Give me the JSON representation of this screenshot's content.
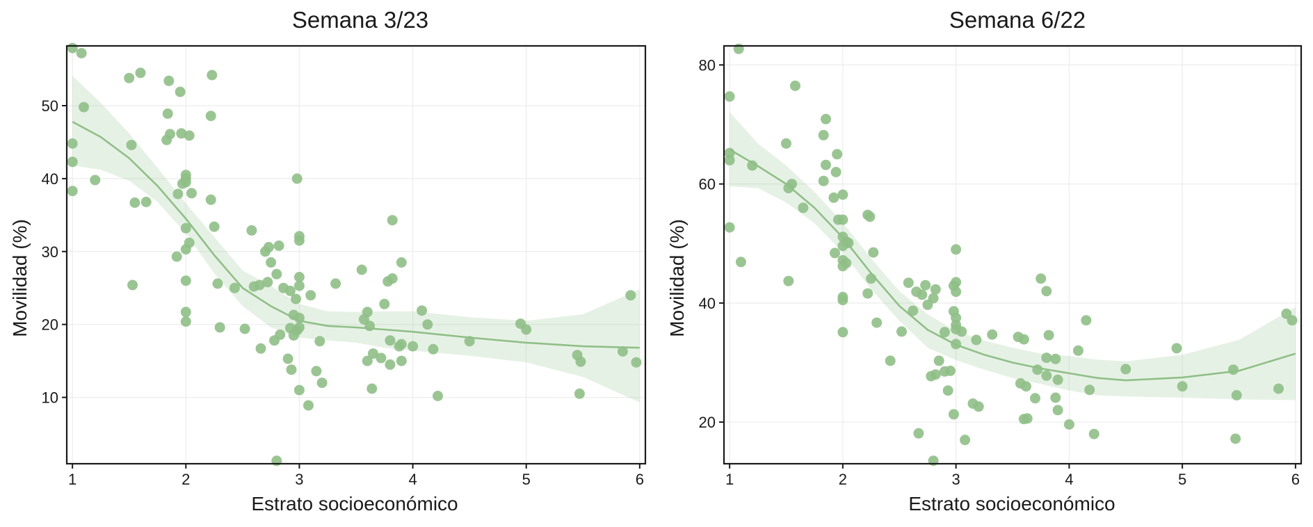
{
  "colors": {
    "points": "#8fbf87",
    "line": "#8fbf87",
    "ribbon": "#8fbf87",
    "axis": "#1a1a1a",
    "grid": "#ececec"
  },
  "chart_data": [
    {
      "type": "scatter",
      "title": "Semana 3/23",
      "xlabel": "Estrato socioeconómico",
      "ylabel": "Movilidad (%)",
      "xlim": [
        0.95,
        6.05
      ],
      "ylim": [
        0.9,
        58.2
      ],
      "xticks": [
        1,
        2,
        3,
        4,
        5,
        6
      ],
      "yticks": [
        10,
        20,
        30,
        40,
        50
      ],
      "xtick_labels": [
        "1",
        "2",
        "3",
        "4",
        "5",
        "6"
      ],
      "ytick_labels": [
        "10",
        "20",
        "30",
        "40",
        "50"
      ],
      "points": [
        [
          1.0,
          57.9
        ],
        [
          1.08,
          57.2
        ],
        [
          1.1,
          49.8
        ],
        [
          1.0,
          44.8
        ],
        [
          1.0,
          42.3
        ],
        [
          1.0,
          38.3
        ],
        [
          1.2,
          39.8
        ],
        [
          1.5,
          53.8
        ],
        [
          1.6,
          54.5
        ],
        [
          1.52,
          44.6
        ],
        [
          1.55,
          36.7
        ],
        [
          1.65,
          36.8
        ],
        [
          1.53,
          25.4
        ],
        [
          1.85,
          53.4
        ],
        [
          1.95,
          51.9
        ],
        [
          1.84,
          48.9
        ],
        [
          1.86,
          46.1
        ],
        [
          1.96,
          46.2
        ],
        [
          2.03,
          45.9
        ],
        [
          1.83,
          45.3
        ],
        [
          1.97,
          39.3
        ],
        [
          2.0,
          39.5
        ],
        [
          2.0,
          40.5
        ],
        [
          2.0,
          40.0
        ],
        [
          1.93,
          37.9
        ],
        [
          2.05,
          38.0
        ],
        [
          2.0,
          33.2
        ],
        [
          2.03,
          31.2
        ],
        [
          2.0,
          30.3
        ],
        [
          1.92,
          29.3
        ],
        [
          2.0,
          26.0
        ],
        [
          2.0,
          21.7
        ],
        [
          2.0,
          20.4
        ],
        [
          2.23,
          54.2
        ],
        [
          2.22,
          48.6
        ],
        [
          2.22,
          37.1
        ],
        [
          2.25,
          33.4
        ],
        [
          2.28,
          25.6
        ],
        [
          2.3,
          19.6
        ],
        [
          2.43,
          25.0
        ],
        [
          2.52,
          19.4
        ],
        [
          2.58,
          32.9
        ],
        [
          2.6,
          25.2
        ],
        [
          2.65,
          25.4
        ],
        [
          2.66,
          16.7
        ],
        [
          2.7,
          30.0
        ],
        [
          2.73,
          30.6
        ],
        [
          2.75,
          28.5
        ],
        [
          2.72,
          25.8
        ],
        [
          2.8,
          26.9
        ],
        [
          2.82,
          30.8
        ],
        [
          2.78,
          17.8
        ],
        [
          2.83,
          18.6
        ],
        [
          2.8,
          1.3
        ],
        [
          2.86,
          25.0
        ],
        [
          2.92,
          24.6
        ],
        [
          2.95,
          21.3
        ],
        [
          2.97,
          23.5
        ],
        [
          3.0,
          25.3
        ],
        [
          3.0,
          26.5
        ],
        [
          3.0,
          31.5
        ],
        [
          3.0,
          32.1
        ],
        [
          2.98,
          40.0
        ],
        [
          2.92,
          19.5
        ],
        [
          2.95,
          18.5
        ],
        [
          2.98,
          19.2
        ],
        [
          3.0,
          20.9
        ],
        [
          3.0,
          19.6
        ],
        [
          2.9,
          15.3
        ],
        [
          2.93,
          13.8
        ],
        [
          3.0,
          11.0
        ],
        [
          3.1,
          24.0
        ],
        [
          3.15,
          13.6
        ],
        [
          3.18,
          17.7
        ],
        [
          3.2,
          12.0
        ],
        [
          3.08,
          8.9
        ],
        [
          3.32,
          25.6
        ],
        [
          3.55,
          27.5
        ],
        [
          3.57,
          20.7
        ],
        [
          3.6,
          21.7
        ],
        [
          3.62,
          19.8
        ],
        [
          3.6,
          15.0
        ],
        [
          3.65,
          16.0
        ],
        [
          3.64,
          11.2
        ],
        [
          3.72,
          15.4
        ],
        [
          3.75,
          22.8
        ],
        [
          3.78,
          25.9
        ],
        [
          3.82,
          26.3
        ],
        [
          3.8,
          17.8
        ],
        [
          3.82,
          34.3
        ],
        [
          3.8,
          14.5
        ],
        [
          3.88,
          17.0
        ],
        [
          3.9,
          28.5
        ],
        [
          3.9,
          17.3
        ],
        [
          3.9,
          15.0
        ],
        [
          4.0,
          17.0
        ],
        [
          4.08,
          21.9
        ],
        [
          4.13,
          20.0
        ],
        [
          4.18,
          16.6
        ],
        [
          4.22,
          10.2
        ],
        [
          4.5,
          17.7
        ],
        [
          4.95,
          20.1
        ],
        [
          5.0,
          19.3
        ],
        [
          5.45,
          15.8
        ],
        [
          5.48,
          14.9
        ],
        [
          5.47,
          10.5
        ],
        [
          5.85,
          16.3
        ],
        [
          5.92,
          24.0
        ],
        [
          5.97,
          14.8
        ]
      ],
      "smooth": {
        "x": [
          1,
          1.25,
          1.5,
          1.75,
          2,
          2.25,
          2.5,
          2.75,
          3,
          3.25,
          3.5,
          3.75,
          4,
          4.5,
          5,
          5.5,
          6
        ],
        "y": [
          47.8,
          45.7,
          42.8,
          39.0,
          34.5,
          29.5,
          25.0,
          22.5,
          20.5,
          19.8,
          19.6,
          19.3,
          19.0,
          18.2,
          17.5,
          17.0,
          16.8
        ],
        "lower": [
          41.8,
          41.2,
          39.7,
          36.8,
          32.5,
          27.0,
          22.5,
          19.6,
          18.2,
          17.8,
          17.5,
          16.8,
          16.4,
          15.7,
          14.8,
          12.8,
          9.3
        ],
        "upper": [
          54.1,
          50.4,
          46.2,
          41.5,
          36.6,
          32.0,
          27.4,
          25.3,
          22.8,
          21.8,
          21.7,
          21.8,
          21.8,
          21.0,
          20.5,
          21.4,
          24.8
        ]
      }
    },
    {
      "type": "scatter",
      "title": "Semana 6/22",
      "xlabel": "Estrato socioeconómico",
      "ylabel": "Movilidad (%)",
      "xlim": [
        0.95,
        6.05
      ],
      "ylim": [
        13.0,
        83.2
      ],
      "xticks": [
        1,
        2,
        3,
        4,
        5,
        6
      ],
      "yticks": [
        20,
        40,
        60,
        80
      ],
      "xtick_labels": [
        "1",
        "2",
        "3",
        "4",
        "5",
        "6"
      ],
      "ytick_labels": [
        "20",
        "40",
        "60",
        "80"
      ],
      "points": [
        [
          1.08,
          82.7
        ],
        [
          1.0,
          74.7
        ],
        [
          1.0,
          65.2
        ],
        [
          1.0,
          64.0
        ],
        [
          1.2,
          63.1
        ],
        [
          1.0,
          52.7
        ],
        [
          1.1,
          46.9
        ],
        [
          1.5,
          66.8
        ],
        [
          1.58,
          76.5
        ],
        [
          1.55,
          60.0
        ],
        [
          1.52,
          59.3
        ],
        [
          1.65,
          56.0
        ],
        [
          1.52,
          43.7
        ],
        [
          1.85,
          70.9
        ],
        [
          1.83,
          68.2
        ],
        [
          1.85,
          63.2
        ],
        [
          1.95,
          65.0
        ],
        [
          1.94,
          62.0
        ],
        [
          1.83,
          60.5
        ],
        [
          1.92,
          57.7
        ],
        [
          2.0,
          58.2
        ],
        [
          1.96,
          54.0
        ],
        [
          2.0,
          54.0
        ],
        [
          2.0,
          51.1
        ],
        [
          2.03,
          50.3
        ],
        [
          2.05,
          50.1
        ],
        [
          2.0,
          49.6
        ],
        [
          1.93,
          48.4
        ],
        [
          2.0,
          47.2
        ],
        [
          2.03,
          46.7
        ],
        [
          2.0,
          46.2
        ],
        [
          2.0,
          41.0
        ],
        [
          2.0,
          40.5
        ],
        [
          2.0,
          35.1
        ],
        [
          2.22,
          54.8
        ],
        [
          2.24,
          54.5
        ],
        [
          2.27,
          48.5
        ],
        [
          2.25,
          44.1
        ],
        [
          2.22,
          41.6
        ],
        [
          2.3,
          36.7
        ],
        [
          2.42,
          30.3
        ],
        [
          2.52,
          35.2
        ],
        [
          2.58,
          43.4
        ],
        [
          2.62,
          38.7
        ],
        [
          2.65,
          41.9
        ],
        [
          2.7,
          41.4
        ],
        [
          2.73,
          43.0
        ],
        [
          2.75,
          39.7
        ],
        [
          2.8,
          40.8
        ],
        [
          2.82,
          42.3
        ],
        [
          2.67,
          18.1
        ],
        [
          2.85,
          30.3
        ],
        [
          2.9,
          35.1
        ],
        [
          2.95,
          28.6
        ],
        [
          2.9,
          28.5
        ],
        [
          2.82,
          28.0
        ],
        [
          2.78,
          27.7
        ],
        [
          2.93,
          25.3
        ],
        [
          2.8,
          13.5
        ],
        [
          3.0,
          49.0
        ],
        [
          3.0,
          43.5
        ],
        [
          2.98,
          42.9
        ],
        [
          3.0,
          41.9
        ],
        [
          2.98,
          38.6
        ],
        [
          3.0,
          37.5
        ],
        [
          3.0,
          36.3
        ],
        [
          3.0,
          35.6
        ],
        [
          3.05,
          35.2
        ],
        [
          3.0,
          33.1
        ],
        [
          2.98,
          21.3
        ],
        [
          3.08,
          17.0
        ],
        [
          3.15,
          23.1
        ],
        [
          3.2,
          22.6
        ],
        [
          3.18,
          33.8
        ],
        [
          3.32,
          34.7
        ],
        [
          3.55,
          34.3
        ],
        [
          3.6,
          33.9
        ],
        [
          3.57,
          26.5
        ],
        [
          3.62,
          26.0
        ],
        [
          3.6,
          20.5
        ],
        [
          3.63,
          20.6
        ],
        [
          3.7,
          24.0
        ],
        [
          3.72,
          28.8
        ],
        [
          3.75,
          44.1
        ],
        [
          3.8,
          42.0
        ],
        [
          3.8,
          30.8
        ],
        [
          3.82,
          34.6
        ],
        [
          3.8,
          27.8
        ],
        [
          3.88,
          30.6
        ],
        [
          3.9,
          27.1
        ],
        [
          3.88,
          24.1
        ],
        [
          3.9,
          22.0
        ],
        [
          4.0,
          19.6
        ],
        [
          4.08,
          32.0
        ],
        [
          4.15,
          37.1
        ],
        [
          4.18,
          25.4
        ],
        [
          4.22,
          18.0
        ],
        [
          4.5,
          28.9
        ],
        [
          4.95,
          32.4
        ],
        [
          5.0,
          26.0
        ],
        [
          5.45,
          28.8
        ],
        [
          5.48,
          24.5
        ],
        [
          5.47,
          17.2
        ],
        [
          5.85,
          25.6
        ],
        [
          5.92,
          38.2
        ],
        [
          5.97,
          37.1
        ]
      ],
      "smooth": {
        "x": [
          1,
          1.25,
          1.5,
          1.75,
          2,
          2.25,
          2.5,
          2.75,
          3,
          3.25,
          3.5,
          3.75,
          4,
          4.25,
          4.5,
          5,
          5.5,
          6
        ],
        "y": [
          65.8,
          63.0,
          60.0,
          56.0,
          51.0,
          45.0,
          39.5,
          35.5,
          33.0,
          31.3,
          30.0,
          29.0,
          28.2,
          27.4,
          27.0,
          27.5,
          28.6,
          31.5
        ],
        "lower": [
          59.6,
          59.3,
          56.9,
          53.4,
          48.5,
          42.3,
          37.0,
          32.5,
          30.4,
          28.8,
          27.4,
          26.4,
          25.3,
          24.5,
          24.3,
          24.1,
          23.8,
          23.7
        ],
        "upper": [
          72.1,
          66.8,
          63.1,
          58.7,
          53.5,
          47.5,
          42.0,
          38.1,
          35.3,
          33.7,
          32.5,
          31.5,
          31.1,
          30.5,
          30.2,
          31.3,
          33.8,
          39.3
        ]
      }
    }
  ]
}
